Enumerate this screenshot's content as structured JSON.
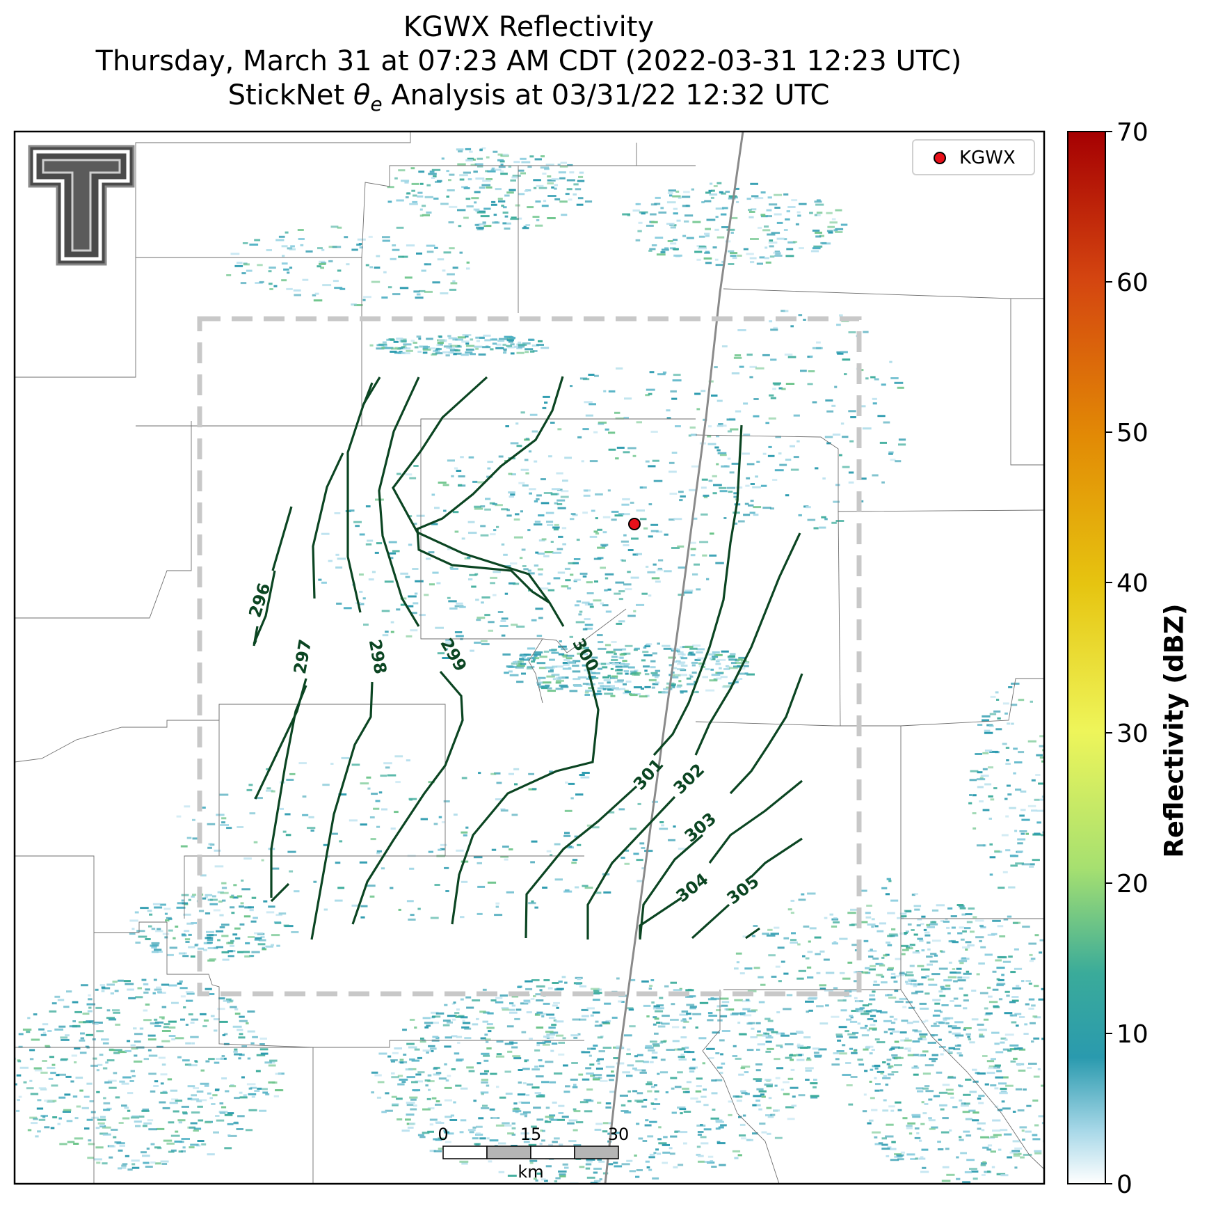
{
  "title": {
    "line1": "KGWX Reflectivity",
    "line2": "Thursday, March 31 at 07:23 AM CDT (2022-03-31 12:23 UTC)",
    "line3_prefix": "StickNet ",
    "line3_symbol": "θ",
    "line3_subscript": "e",
    "line3_suffix": " Analysis at 03/31/22 12:32 UTC"
  },
  "legend": {
    "label": "KGWX",
    "marker_color": "#e8101a"
  },
  "radar_site": {
    "name": "KGWX"
  },
  "colorbar": {
    "label": "Reflectivity (dBZ)",
    "ticks": [
      "0",
      "10",
      "20",
      "30",
      "40",
      "50",
      "60",
      "70"
    ],
    "min": 0,
    "max": 70
  },
  "contours": {
    "color": "#0b4522",
    "levels": [
      "296",
      "297",
      "298",
      "299",
      "300",
      "301",
      "302",
      "303",
      "304",
      "305"
    ]
  },
  "scale_bar": {
    "ticks": [
      "0",
      "15",
      "30"
    ],
    "unit": "km"
  },
  "logo": {
    "name": "Texas Tech double-T logo"
  },
  "colors": {
    "domain_box": "#c8c8c8",
    "highway": "#8a8a8a",
    "county_lines": "#6e6e6e"
  }
}
